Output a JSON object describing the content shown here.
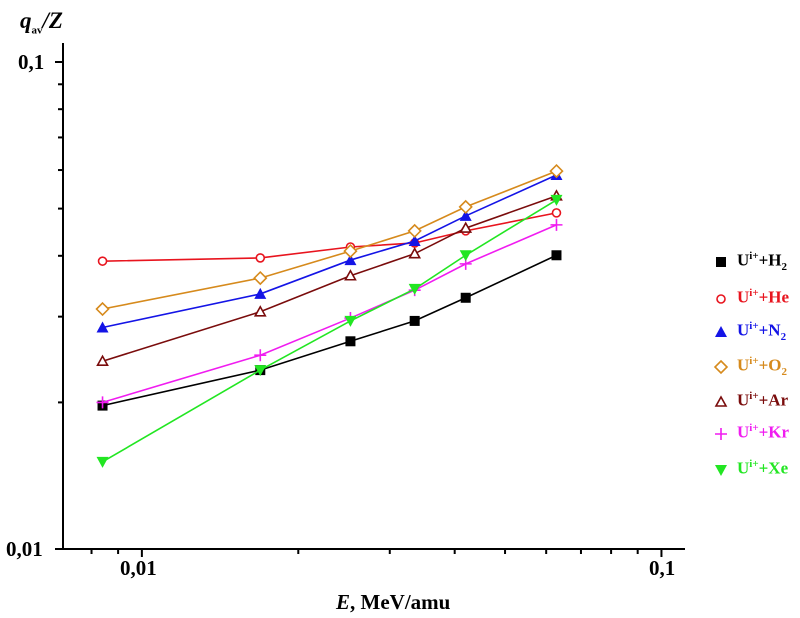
{
  "chart_data": {
    "type": "line",
    "title": "",
    "xlabel_italic": "E",
    "xlabel_rest": ", MeV/amu",
    "ylabel_main": "q",
    "ylabel_sub": "av",
    "ylabel_rest": "/Z",
    "xscale": "log",
    "yscale": "log",
    "xlim": [
      0.00705,
      0.111
    ],
    "ylim": [
      0.01,
      0.1094
    ],
    "xticks": [
      {
        "value": 0.01,
        "label": "0,01"
      },
      {
        "value": 0.1,
        "label": "0,1"
      }
    ],
    "yticks": [
      {
        "value": 0.01,
        "label": "0,01"
      },
      {
        "value": 0.1,
        "label": "0,1"
      }
    ],
    "grid": false,
    "legend_position": "right",
    "x": [
      0.0084,
      0.0169,
      0.0252,
      0.0335,
      0.042,
      0.0628
    ],
    "series": [
      {
        "name": "H2",
        "prefix": "U",
        "sup": "i+",
        "plus": "+H",
        "sub": "2",
        "marker": "square",
        "color": "#000000",
        "values": [
          0.0197,
          0.0233,
          0.0267,
          0.0294,
          0.0328,
          0.0401
        ]
      },
      {
        "name": "He",
        "prefix": "U",
        "sup": "i+",
        "plus": "+He",
        "sub": "",
        "marker": "circle",
        "color": "#e8141e",
        "values": [
          0.039,
          0.0396,
          0.0417,
          0.0425,
          0.045,
          0.049
        ]
      },
      {
        "name": "N2",
        "prefix": "U",
        "sup": "i+",
        "plus": "+N",
        "sub": "2",
        "marker": "triangle-up",
        "color": "#1414e6",
        "values": [
          0.0285,
          0.0334,
          0.0392,
          0.0429,
          0.0483,
          0.0586
        ]
      },
      {
        "name": "O2",
        "prefix": "U",
        "sup": "i+",
        "plus": "+O",
        "sub": "2",
        "marker": "diamond-open",
        "color": "#d68a1c",
        "values": [
          0.0311,
          0.036,
          0.0409,
          0.045,
          0.0504,
          0.0597
        ]
      },
      {
        "name": "Ar",
        "prefix": "U",
        "sup": "i+",
        "plus": "+Ar",
        "sub": "",
        "marker": "triangle-open",
        "color": "#7a0c0c",
        "values": [
          0.0243,
          0.0307,
          0.0364,
          0.0404,
          0.0456,
          0.0531
        ]
      },
      {
        "name": "Kr",
        "prefix": "U",
        "sup": "i+",
        "plus": "+Kr",
        "sub": "",
        "marker": "plus",
        "color": "#f01cf0",
        "values": [
          0.02,
          0.025,
          0.0298,
          0.034,
          0.0385,
          0.0463
        ]
      },
      {
        "name": "Xe",
        "prefix": "U",
        "sup": "i+",
        "plus": "+Xe",
        "sub": "",
        "marker": "triangle-down",
        "color": "#22e622",
        "values": [
          0.0151,
          0.0233,
          0.0294,
          0.0342,
          0.0401,
          0.0521
        ]
      }
    ]
  }
}
